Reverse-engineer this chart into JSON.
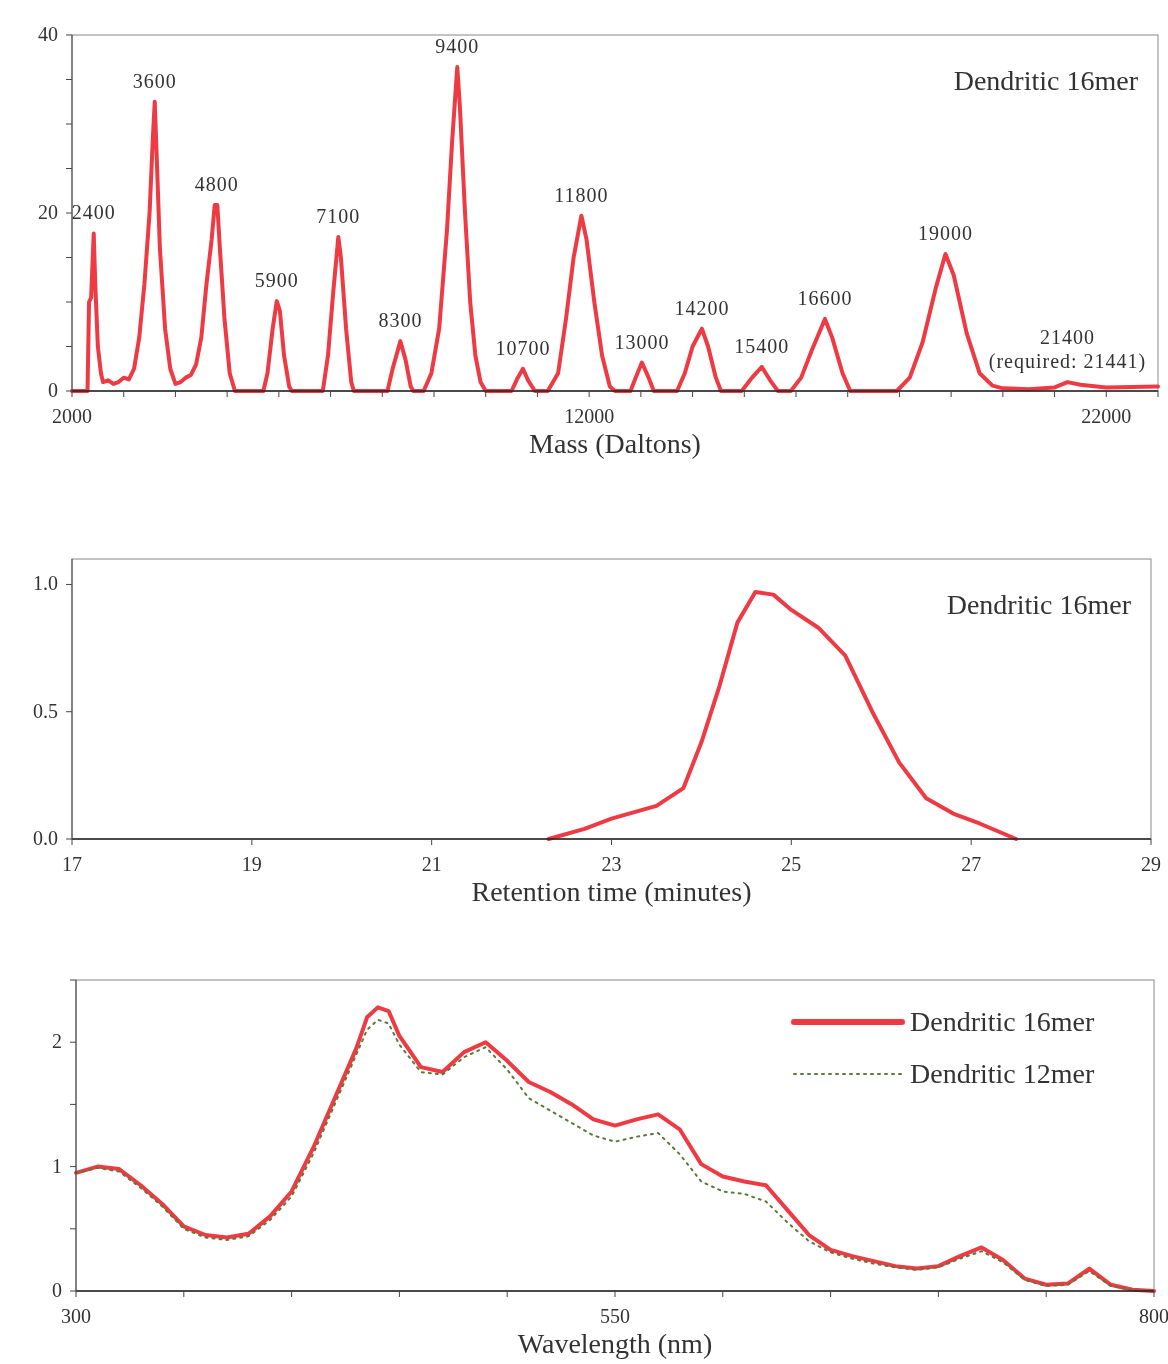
{
  "chart_data": [
    {
      "type": "line",
      "xlabel": "Mass (Daltons)",
      "xlim": [
        2000,
        23000
      ],
      "ylim": [
        0,
        40
      ],
      "xticks": [
        2000,
        {
          "value": 3000,
          "label": null
        },
        {
          "value": 4000,
          "label": null
        },
        {
          "value": 5000,
          "label": null
        },
        {
          "value": 6000,
          "label": null
        },
        {
          "value": 7000,
          "label": null
        },
        {
          "value": 8000,
          "label": null
        },
        {
          "value": 9000,
          "label": null
        },
        {
          "value": 10000,
          "label": null
        },
        {
          "value": 11000,
          "label": null
        },
        12000,
        {
          "value": 13000,
          "label": null
        },
        {
          "value": 14000,
          "label": null
        },
        {
          "value": 15000,
          "label": null
        },
        {
          "value": 16000,
          "label": null
        },
        {
          "value": 17000,
          "label": null
        },
        {
          "value": 18000,
          "label": null
        },
        {
          "value": 19000,
          "label": null
        },
        {
          "value": 20000,
          "label": null
        },
        {
          "value": 21000,
          "label": null
        },
        22000,
        {
          "value": 23000,
          "label": null
        }
      ],
      "yticks": [
        0,
        {
          "value": 5,
          "label": null
        },
        {
          "value": 10,
          "label": null
        },
        {
          "value": 15,
          "label": null
        },
        20,
        {
          "value": 25,
          "label": null
        },
        {
          "value": 30,
          "label": null
        },
        {
          "value": 35,
          "label": null
        },
        40
      ],
      "grid": false,
      "legend": false,
      "marker": "none",
      "series": [
        {
          "color": "#ee3a43",
          "line_style": "solid",
          "x": [
            2000,
            2300,
            2330,
            2370,
            2420,
            2450,
            2500,
            2560,
            2600,
            2700,
            2800,
            2900,
            3000,
            3100,
            3200,
            3300,
            3400,
            3500,
            3560,
            3600,
            3640,
            3700,
            3800,
            3900,
            4000,
            4100,
            4200,
            4300,
            4400,
            4500,
            4600,
            4700,
            4760,
            4810,
            4860,
            4950,
            5050,
            5150,
            5700,
            5780,
            5880,
            5960,
            6020,
            6100,
            6200,
            6250,
            6850,
            6950,
            7050,
            7150,
            7200,
            7300,
            7400,
            7450,
            8100,
            8200,
            8350,
            8450,
            8550,
            8600,
            8800,
            8950,
            9100,
            9250,
            9350,
            9450,
            9500,
            9600,
            9700,
            9800,
            9900,
            10000,
            10500,
            10620,
            10720,
            10820,
            10950,
            11200,
            11400,
            11550,
            11700,
            11850,
            11950,
            12100,
            12250,
            12400,
            12500,
            12800,
            12900,
            13020,
            13150,
            13250,
            13700,
            13850,
            14000,
            14180,
            14300,
            14450,
            14550,
            14950,
            15150,
            15340,
            15500,
            15650,
            15900,
            16100,
            16300,
            16560,
            16700,
            16900,
            17050,
            17950,
            18200,
            18450,
            18700,
            18890,
            19050,
            19300,
            19550,
            19800,
            20000,
            20500,
            21000,
            21250,
            21500,
            22000,
            23000
          ],
          "values": [
            0,
            0,
            10,
            10.5,
            17.7,
            12,
            5,
            2,
            1,
            1.2,
            0.8,
            1,
            1.5,
            1.3,
            2.5,
            6,
            12,
            20,
            28,
            32.5,
            26,
            16,
            7,
            2.5,
            0.8,
            1,
            1.5,
            1.8,
            3,
            6,
            12,
            17,
            20.9,
            20.9,
            16,
            8,
            2,
            0,
            0,
            2,
            7,
            10.1,
            9,
            4,
            0.5,
            0,
            0,
            4,
            11,
            17.3,
            15,
            7,
            1,
            0,
            0,
            2.5,
            5.6,
            3.5,
            0.5,
            0,
            0,
            2,
            7,
            18,
            28,
            36.4,
            32,
            20,
            10,
            4,
            1,
            0,
            0,
            1.5,
            2.5,
            1.2,
            0,
            0,
            2,
            8,
            15,
            19.7,
            17,
            10,
            4,
            0.5,
            0,
            0,
            1.5,
            3.2,
            1.5,
            0,
            0,
            2,
            5,
            7,
            5,
            1.5,
            0,
            0,
            1.5,
            2.7,
            1.2,
            0,
            0,
            1.5,
            4.5,
            8.1,
            6,
            2,
            0,
            0,
            1.5,
            5.5,
            11.5,
            15.4,
            13,
            6.5,
            2,
            0.6,
            0.3,
            0.2,
            0.4,
            1,
            0.7,
            0.4,
            0.5
          ]
        }
      ],
      "annotations": [
        "Dendritic 16mer",
        {
          "text": "2400",
          "x": 2420,
          "y": 17.7
        },
        {
          "text": "3600",
          "x": 3600,
          "y": 32.5
        },
        {
          "text": "4800",
          "x": 4800,
          "y": 20.9
        },
        {
          "text": "5900",
          "x": 5960,
          "y": 10.1
        },
        {
          "text": "7100",
          "x": 7150,
          "y": 17.3
        },
        {
          "text": "8300",
          "x": 8350,
          "y": 5.6
        },
        {
          "text": "9400",
          "x": 9450,
          "y": 36.4
        },
        {
          "text": "10700",
          "x": 10720,
          "y": 2.5
        },
        {
          "text": "11800",
          "x": 11850,
          "y": 19.7
        },
        {
          "text": "13000",
          "x": 13020,
          "y": 3.2
        },
        {
          "text": "14200",
          "x": 14180,
          "y": 7
        },
        {
          "text": "15400",
          "x": 15340,
          "y": 2.7
        },
        {
          "text": "16600",
          "x": 16560,
          "y": 8.1
        },
        {
          "text": "19000",
          "x": 18890,
          "y": 15.4
        },
        {
          "text": "21400\n(required: 21441)",
          "x": 21250,
          "y": 1
        }
      ]
    },
    {
      "type": "line",
      "xlabel": "Retention time (minutes)",
      "xlim": [
        17,
        29
      ],
      "ylim": [
        0,
        1.1
      ],
      "xticks": [
        17,
        19,
        21,
        23,
        25,
        27,
        29
      ],
      "yticks": [
        {
          "value": 0,
          "label": "0.0"
        },
        {
          "value": 0.5,
          "label": "0.5"
        },
        {
          "value": 1,
          "label": "1.0"
        }
      ],
      "grid": false,
      "legend": false,
      "marker": "none",
      "series": [
        {
          "color": "#ee3a43",
          "line_style": "solid",
          "x": [
            22.3,
            22.7,
            23,
            23.5,
            23.8,
            24,
            24.2,
            24.4,
            24.6,
            24.8,
            25,
            25.3,
            25.6,
            25.9,
            26.2,
            26.5,
            26.8,
            27.1,
            27.5
          ],
          "values": [
            0,
            0.04,
            0.08,
            0.13,
            0.2,
            0.38,
            0.6,
            0.85,
            0.97,
            0.96,
            0.9,
            0.83,
            0.72,
            0.5,
            0.3,
            0.16,
            0.1,
            0.06,
            0
          ]
        }
      ],
      "annotations": [
        "Dendritic 16mer"
      ]
    },
    {
      "type": "line",
      "xlabel": "Wavelength (nm)",
      "xlim": [
        300,
        800
      ],
      "ylim": [
        0,
        2.5
      ],
      "xticks": [
        300,
        {
          "value": 350,
          "label": null
        },
        {
          "value": 400,
          "label": null
        },
        {
          "value": 450,
          "label": null
        },
        {
          "value": 500,
          "label": null
        },
        550,
        {
          "value": 600,
          "label": null
        },
        {
          "value": 650,
          "label": null
        },
        {
          "value": 700,
          "label": null
        },
        {
          "value": 750,
          "label": null
        },
        800
      ],
      "yticks": [
        0,
        {
          "value": 0.5,
          "label": null
        },
        1,
        {
          "value": 1.5,
          "label": null
        },
        2,
        {
          "value": 2.5,
          "label": null
        }
      ],
      "grid": false,
      "legend": "top right",
      "marker": "none",
      "series": [
        {
          "name": "Dendritic 16mer",
          "color": "#ee3a43",
          "line_style": "solid",
          "x": [
            300,
            310,
            320,
            330,
            340,
            350,
            360,
            370,
            380,
            390,
            400,
            410,
            420,
            430,
            435,
            440,
            445,
            450,
            460,
            470,
            480,
            490,
            500,
            510,
            520,
            530,
            540,
            550,
            560,
            570,
            580,
            590,
            600,
            610,
            620,
            630,
            640,
            650,
            660,
            670,
            680,
            690,
            700,
            710,
            720,
            730,
            740,
            750,
            760,
            770,
            780,
            790,
            800
          ],
          "values": [
            0.95,
            1,
            0.98,
            0.85,
            0.7,
            0.52,
            0.45,
            0.43,
            0.46,
            0.6,
            0.8,
            1.15,
            1.55,
            1.95,
            2.2,
            2.28,
            2.25,
            2.05,
            1.8,
            1.76,
            1.92,
            2,
            1.85,
            1.68,
            1.6,
            1.5,
            1.38,
            1.33,
            1.38,
            1.42,
            1.3,
            1.02,
            0.92,
            0.88,
            0.85,
            0.65,
            0.45,
            0.33,
            0.28,
            0.24,
            0.2,
            0.18,
            0.2,
            0.28,
            0.35,
            0.25,
            0.1,
            0.05,
            0.06,
            0.18,
            0.05,
            0.01,
            0
          ]
        },
        {
          "name": "Dendritic 12mer",
          "color": "#5a7a3a",
          "line_style": "dotted",
          "x": [
            300,
            310,
            320,
            330,
            340,
            350,
            360,
            370,
            380,
            390,
            400,
            410,
            420,
            430,
            435,
            440,
            445,
            450,
            460,
            470,
            480,
            490,
            500,
            510,
            520,
            530,
            540,
            550,
            560,
            570,
            580,
            590,
            600,
            610,
            620,
            630,
            640,
            650,
            660,
            670,
            680,
            690,
            700,
            710,
            720,
            730,
            740,
            750,
            760,
            770,
            780,
            790,
            800
          ],
          "values": [
            0.95,
            0.99,
            0.96,
            0.83,
            0.68,
            0.5,
            0.43,
            0.41,
            0.44,
            0.57,
            0.76,
            1.1,
            1.5,
            1.9,
            2.1,
            2.18,
            2.15,
            1.98,
            1.76,
            1.74,
            1.88,
            1.96,
            1.78,
            1.55,
            1.45,
            1.35,
            1.25,
            1.2,
            1.24,
            1.27,
            1.1,
            0.88,
            0.8,
            0.78,
            0.72,
            0.55,
            0.4,
            0.31,
            0.26,
            0.22,
            0.19,
            0.17,
            0.19,
            0.26,
            0.32,
            0.23,
            0.09,
            0.04,
            0.05,
            0.16,
            0.04,
            0.01,
            0
          ]
        }
      ]
    }
  ]
}
